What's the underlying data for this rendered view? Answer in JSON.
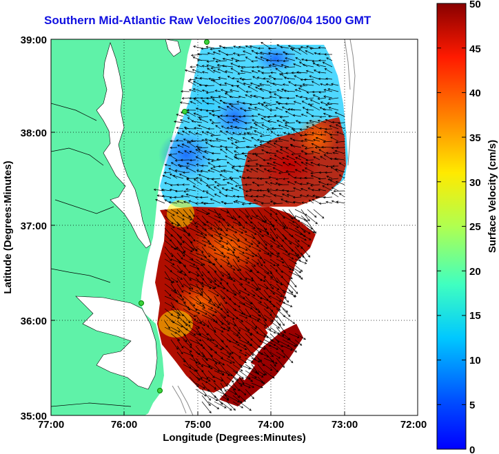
{
  "title": "Southern Mid-Atlantic Raw Velocities 2007/06/04 1500 GMT",
  "map": {
    "x_label": "Longitude (Degrees:Minutes)",
    "y_label": "Latitude (Degrees:Minutes)",
    "x_ticks": [
      "77:00",
      "76:00",
      "75:00",
      "74:00",
      "73:00",
      "72:00"
    ],
    "y_ticks": [
      "39:00",
      "38:00",
      "37:00",
      "36:00",
      "35:00"
    ],
    "colors": {
      "land": "#5ff2a8",
      "water": "#ffffff",
      "grid": "#000000",
      "station": "#3cd23c"
    }
  },
  "colorbar": {
    "label": "Surface Velocity (cm/s)",
    "ticks": [
      "50",
      "45",
      "40",
      "35",
      "30",
      "25",
      "20",
      "15",
      "10",
      "5",
      "0"
    ],
    "min": 0,
    "max": 50,
    "unit": "cm/s"
  }
}
